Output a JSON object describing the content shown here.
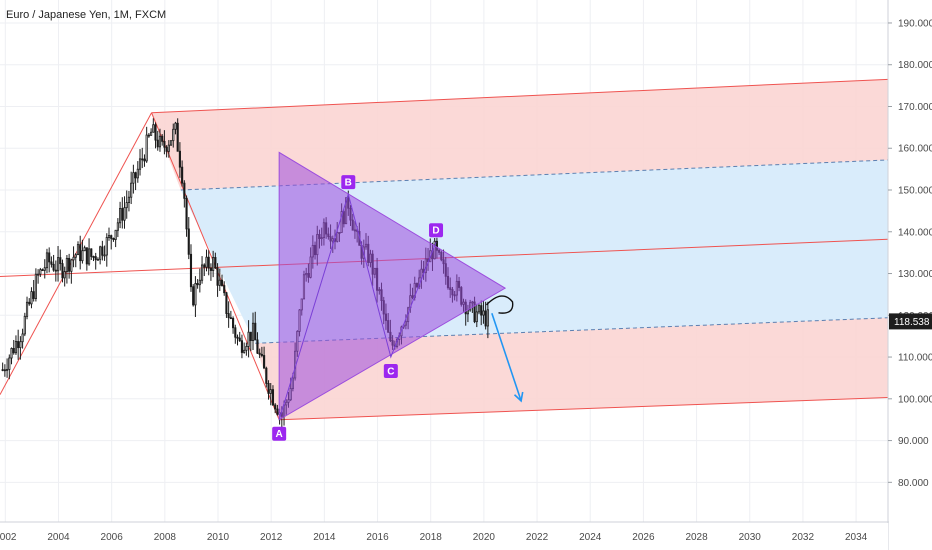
{
  "chart_data": {
    "type": "candlestick",
    "title": "Euro / Japanese Yen, 1M, FXCM",
    "x_axis": {
      "range": [
        2001.8,
        2035.2
      ],
      "tick_labels": [
        "2002",
        "2004",
        "2006",
        "2008",
        "2010",
        "2012",
        "2014",
        "2016",
        "2018",
        "2020",
        "2022",
        "2024",
        "2026",
        "2028",
        "2030",
        "2032",
        "2034"
      ]
    },
    "y_axis": {
      "range": [
        70.5,
        195.5
      ],
      "position": "right",
      "tick_labels": [
        "80.000",
        "90.000",
        "100.000",
        "110.000",
        "120.000",
        "130.000",
        "140.000",
        "150.000",
        "160.000",
        "170.000",
        "180.000",
        "190.000"
      ]
    },
    "grid": true,
    "current_price": "118.538",
    "colors": {
      "up": "#26a69a",
      "down": "#1a1a1a",
      "candle": "#1a1a1a",
      "channel_line": "#ef5350",
      "channel_fill_outer": "#fbd5d3",
      "channel_fill_inner": "#d7ebfb",
      "triangle": "#9c4dde",
      "arrow": "#2196f3",
      "label_bg": "#9c27ef",
      "price_label_bg": "#1e1e1e"
    },
    "close_series": [
      {
        "t": 2001.9,
        "v": 107
      },
      {
        "t": 2002.6,
        "v": 116
      },
      {
        "t": 2003.2,
        "v": 129
      },
      {
        "t": 2003.6,
        "v": 133
      },
      {
        "t": 2004.1,
        "v": 131
      },
      {
        "t": 2004.7,
        "v": 135
      },
      {
        "t": 2005.3,
        "v": 134
      },
      {
        "t": 2005.9,
        "v": 138
      },
      {
        "t": 2006.5,
        "v": 146
      },
      {
        "t": 2007.0,
        "v": 155
      },
      {
        "t": 2007.5,
        "v": 164
      },
      {
        "t": 2007.9,
        "v": 160
      },
      {
        "t": 2008.4,
        "v": 164
      },
      {
        "t": 2008.7,
        "v": 152
      },
      {
        "t": 2009.0,
        "v": 123
      },
      {
        "t": 2009.3,
        "v": 130
      },
      {
        "t": 2009.8,
        "v": 133
      },
      {
        "t": 2010.3,
        "v": 122
      },
      {
        "t": 2010.8,
        "v": 113
      },
      {
        "t": 2011.3,
        "v": 116
      },
      {
        "t": 2011.7,
        "v": 107
      },
      {
        "t": 2012.1,
        "v": 100
      },
      {
        "t": 2012.4,
        "v": 96
      },
      {
        "t": 2012.8,
        "v": 104
      },
      {
        "t": 2013.2,
        "v": 128
      },
      {
        "t": 2013.6,
        "v": 135
      },
      {
        "t": 2014.0,
        "v": 142
      },
      {
        "t": 2014.4,
        "v": 139
      },
      {
        "t": 2014.9,
        "v": 147
      },
      {
        "t": 2015.3,
        "v": 136
      },
      {
        "t": 2015.7,
        "v": 134
      },
      {
        "t": 2016.1,
        "v": 124
      },
      {
        "t": 2016.5,
        "v": 112
      },
      {
        "t": 2016.9,
        "v": 118
      },
      {
        "t": 2017.3,
        "v": 124
      },
      {
        "t": 2017.8,
        "v": 132
      },
      {
        "t": 2018.1,
        "v": 136
      },
      {
        "t": 2018.6,
        "v": 129
      },
      {
        "t": 2019.0,
        "v": 126
      },
      {
        "t": 2019.5,
        "v": 121
      },
      {
        "t": 2019.9,
        "v": 120
      },
      {
        "t": 2020.2,
        "v": 119
      }
    ],
    "pitchfork": {
      "pivots": [
        {
          "t": 2001.8,
          "v": 101
        },
        {
          "t": 2007.5,
          "v": 168.5
        },
        {
          "t": 2012.3,
          "v": 95
        }
      ],
      "upper_line": [
        {
          "t": 2007.5,
          "v": 168.5
        },
        {
          "t": 2035.2,
          "v": 176.5
        }
      ],
      "lower_line": [
        {
          "t": 2012.3,
          "v": 95
        },
        {
          "t": 2035.2,
          "v": 100.3
        }
      ],
      "median_line": [
        {
          "t": 2001.8,
          "v": 129.3
        },
        {
          "t": 2035.2,
          "v": 138.2
        }
      ],
      "inner_upper_dashed": [
        {
          "t": 2008.6,
          "v": 150
        },
        {
          "t": 2035.2,
          "v": 157.2
        }
      ],
      "inner_lower_dashed": [
        {
          "t": 2011.4,
          "v": 113.3
        },
        {
          "t": 2035.2,
          "v": 119.4
        }
      ]
    },
    "triangle": [
      {
        "t": 2012.3,
        "v": 159
      },
      {
        "t": 2012.3,
        "v": 95
      },
      {
        "t": 2020.8,
        "v": 126.5
      }
    ],
    "harmonic_points": [
      {
        "label": "A",
        "t": 2012.3,
        "v": 95
      },
      {
        "label": "B",
        "t": 2014.9,
        "v": 149
      },
      {
        "label": "C",
        "t": 2016.5,
        "v": 110
      },
      {
        "label": "D",
        "t": 2018.2,
        "v": 137.5
      }
    ],
    "arrow": [
      {
        "t": 2020.3,
        "v": 120.5
      },
      {
        "t": 2021.4,
        "v": 99.5
      }
    ]
  }
}
